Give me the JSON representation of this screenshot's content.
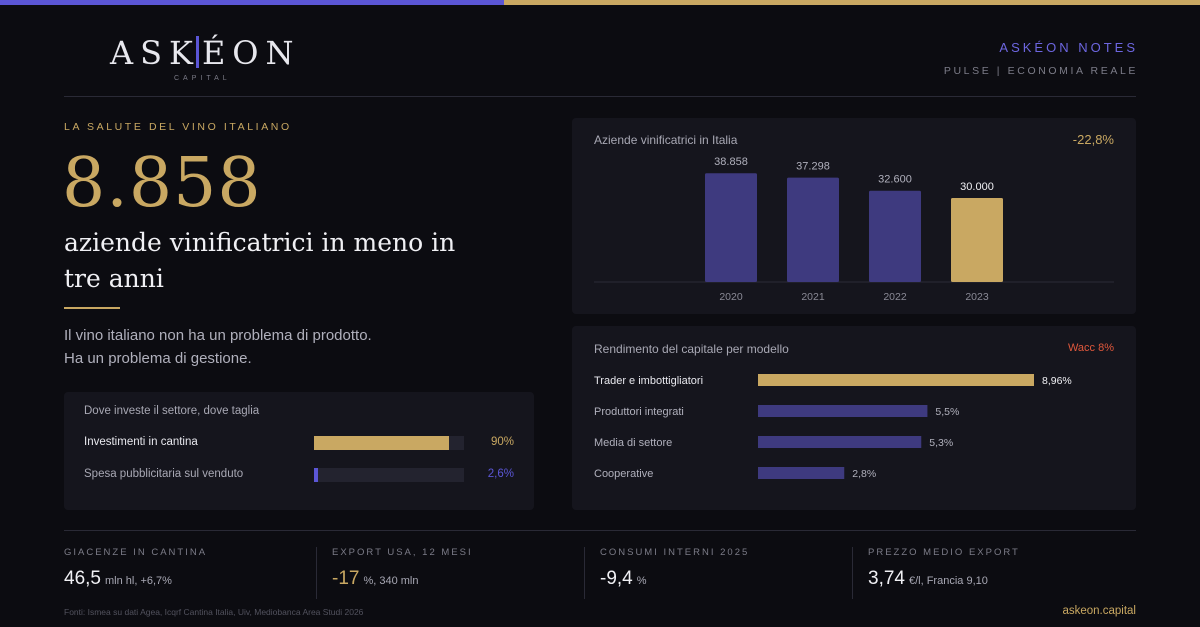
{
  "colors": {
    "gold": "#c9a862",
    "indigo": "#3e3a7f",
    "indigo_bright": "#5b56d6",
    "red": "#e0583c",
    "background": "#0c0c11",
    "card": "#15151d"
  },
  "logo": {
    "left": "ASK",
    "right": "ÉON",
    "sub": "CAPITAL"
  },
  "brand": {
    "title": "ASKÉON NOTES",
    "subtitle": "PULSE | ECONOMIA REALE"
  },
  "hero": {
    "eyebrow": "LA SALUTE DEL VINO ITALIANO",
    "number": "8.858",
    "headline": "aziende vinificatrici in meno in tre anni",
    "intro_line1": "Il vino italiano non ha un problema di prodotto.",
    "intro_line2": "Ha un problema di gestione."
  },
  "invest_card": {
    "title": "Dove investe il settore, dove taglia",
    "rows": [
      {
        "label": "Investimenti in cantina",
        "value": 90,
        "display": "90%",
        "highlight": true
      },
      {
        "label": "Spesa pubblicitaria sul venduto",
        "value": 2.6,
        "display": "2,6%",
        "highlight": false
      }
    ]
  },
  "chart_data": [
    {
      "type": "bar",
      "title": "Aziende vinificatrici in Italia",
      "annotation": "-22,8%",
      "categories": [
        "2020",
        "2021",
        "2022",
        "2023"
      ],
      "values": [
        38858,
        37298,
        32600,
        30000
      ],
      "value_labels": [
        "38.858",
        "37.298",
        "32.600",
        "30.000"
      ],
      "highlight_index": 3,
      "ylim": [
        0,
        40000
      ]
    },
    {
      "type": "bar",
      "orientation": "horizontal",
      "title": "Rendimento del capitale per modello",
      "reference_label": "Wacc 8%",
      "reference_value": 8,
      "categories": [
        "Trader e imbottigliatori",
        "Produttori integrati",
        "Media di settore",
        "Cooperative"
      ],
      "values": [
        8.96,
        5.5,
        5.3,
        2.8
      ],
      "value_labels": [
        "8,96%",
        "5,5%",
        "5,3%",
        "2,8%"
      ],
      "highlight_index": 0,
      "xlim": [
        0,
        9.6
      ]
    }
  ],
  "kpis": [
    {
      "label": "GIACENZE IN CANTINA",
      "value": "46,5",
      "unit": "mln hl, +6,7%",
      "gold": false
    },
    {
      "label": "EXPORT USA, 12 MESI",
      "value": "-17",
      "unit": "%, 340 mln",
      "gold": true
    },
    {
      "label": "CONSUMI INTERNI 2025",
      "value": "-9,4",
      "unit": "%",
      "gold": false
    },
    {
      "label": "PREZZO MEDIO EXPORT",
      "value": "3,74",
      "unit": "€/l, Francia 9,10",
      "gold": false
    }
  ],
  "footer": {
    "sources": "Fonti: Ismea su dati Agea, Icqrf Cantina Italia, Uiv, Mediobanca Area Studi 2026",
    "site": "askeon.capital"
  }
}
